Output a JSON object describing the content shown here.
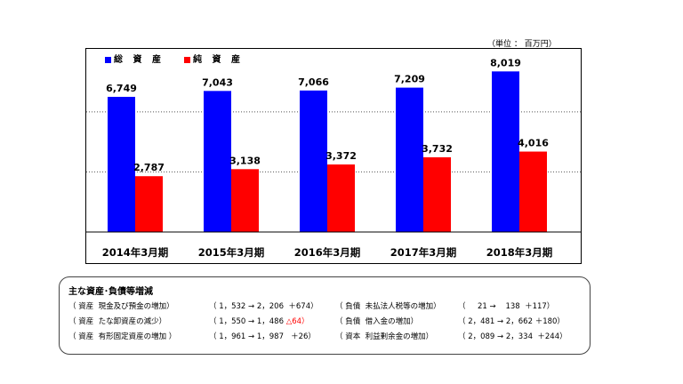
{
  "unit_label": "（単位 ： 百万円）",
  "chart_data": {
    "type": "bar",
    "categories": [
      "2014年3月期",
      "2015年3月期",
      "2016年3月期",
      "2017年3月期",
      "2018年3月期"
    ],
    "series": [
      {
        "name": "総 資 産",
        "color": "#0000ff",
        "values": [
          6749,
          7043,
          7066,
          7209,
          8019
        ],
        "labels": [
          "6,749",
          "7,043",
          "7,066",
          "7,209",
          "8,019"
        ]
      },
      {
        "name": "純 資 産",
        "color": "#ff0000",
        "values": [
          2787,
          3138,
          3372,
          3732,
          4016
        ],
        "labels": [
          "2,787",
          "3,138",
          "3,372",
          "3,732",
          "4,016"
        ]
      }
    ],
    "ylim": [
      0,
      8700
    ],
    "grid_lines_at": [
      3000,
      6000
    ],
    "legend_placement": "top-left"
  },
  "notes": {
    "title": "主な資産･負債等増減",
    "left": [
      {
        "label": "（ 資産  現金及び預金の増加）",
        "values": "（ 1，532 → 2，206  ＋674）",
        "neg": ""
      },
      {
        "label": "（ 資産  たな卸資産の減少）",
        "values": "（ 1，550 → 1，486",
        "neg": "△64）"
      },
      {
        "label": "（ 資産  有形固定資産の増加 ）",
        "values": "（ 1，961 → 1，987   ＋26）",
        "neg": ""
      }
    ],
    "right": [
      {
        "label": "（ 負債  未払法人税等の増加）",
        "values": "（     21 →    138  ＋117）"
      },
      {
        "label": "（ 負債  借入金の増加）",
        "values": "（ 2，481 → 2，662 ＋180）"
      },
      {
        "label": "（ 資本  利益剰余金の増加）",
        "values": "（ 2，089 → 2，334  ＋244）"
      }
    ]
  }
}
